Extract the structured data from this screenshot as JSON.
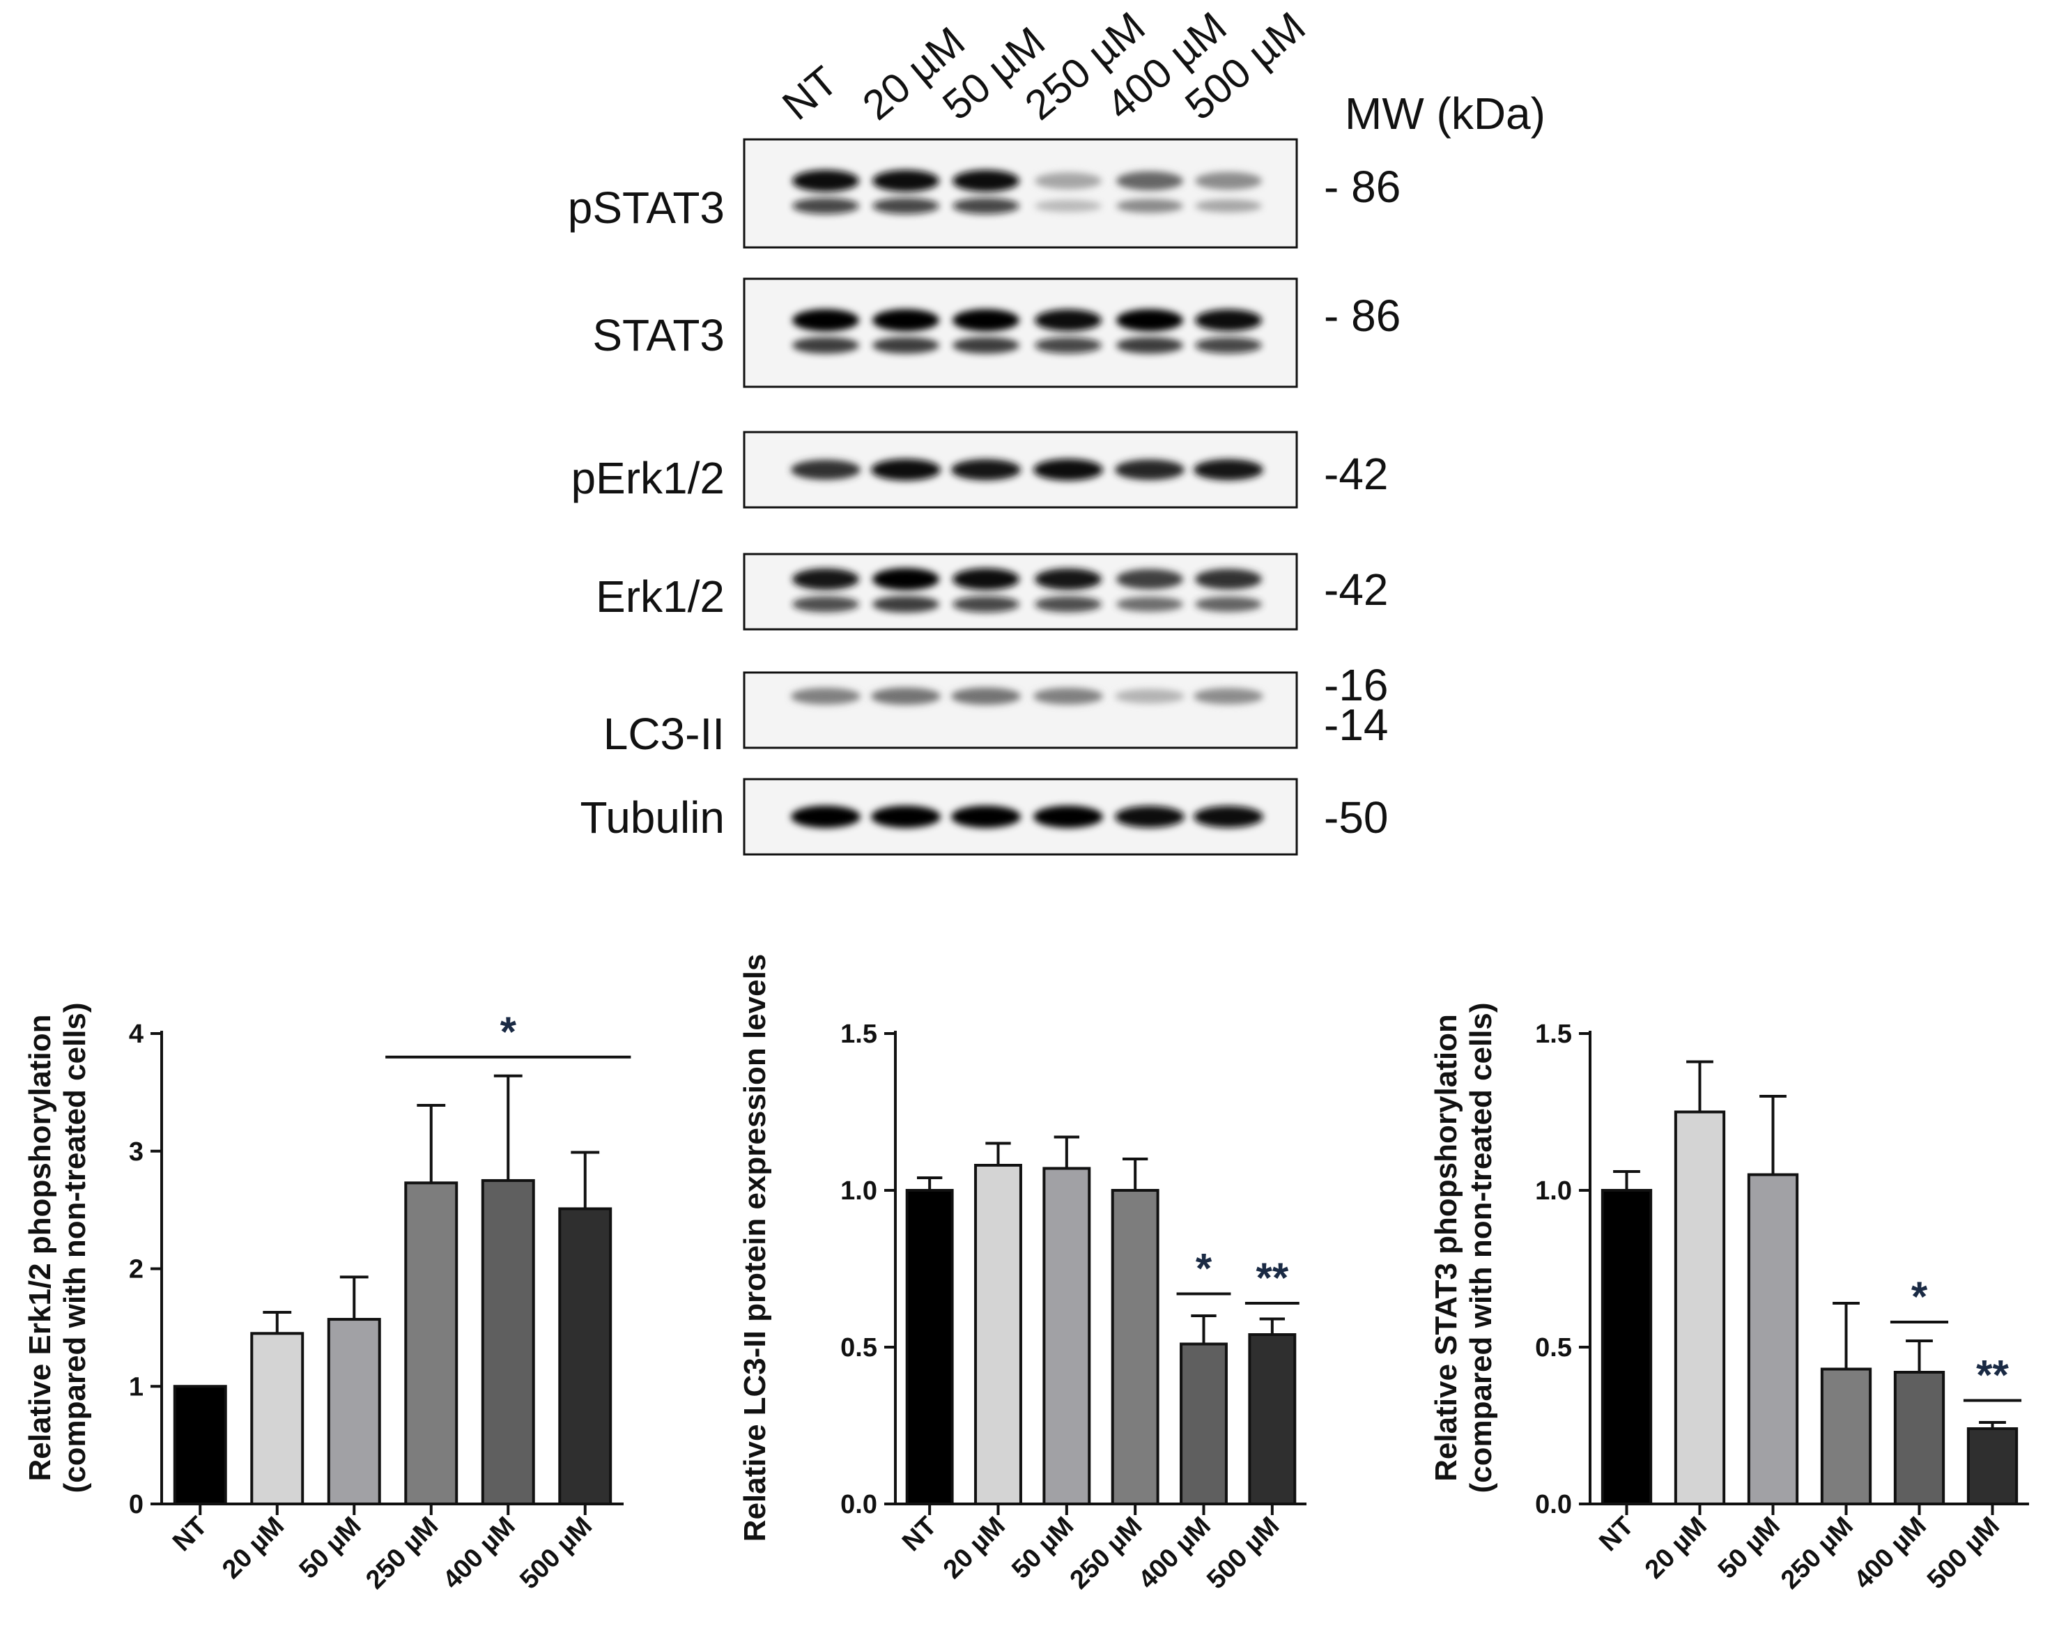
{
  "blot": {
    "lanes": [
      "NT",
      "20 µM",
      "50 µM",
      "250 µM",
      "400 µM",
      "500 µM"
    ],
    "mw_header": "MW (kDa)",
    "panels": [
      {
        "label": "pSTAT3",
        "mw": [
          "- 86"
        ],
        "intensity": [
          0.95,
          0.95,
          0.95,
          0.35,
          0.6,
          0.45
        ],
        "bands": 2
      },
      {
        "label": "STAT3",
        "mw": [
          "- 86"
        ],
        "intensity": [
          1,
          1,
          1,
          0.95,
          1,
          0.95
        ],
        "bands": 2
      },
      {
        "label": "pErk1/2",
        "mw": [
          "-42"
        ],
        "intensity": [
          0.8,
          0.95,
          0.9,
          0.95,
          0.85,
          0.9
        ],
        "bands": 1
      },
      {
        "label": "Erk1/2",
        "mw": [
          "-42"
        ],
        "intensity": [
          0.9,
          1,
          0.95,
          0.9,
          0.75,
          0.8
        ],
        "bands": 2
      },
      {
        "label": "LC3-II",
        "mw": [
          "-16",
          "-14"
        ],
        "intensity": [
          0.5,
          0.55,
          0.55,
          0.5,
          0.3,
          0.45
        ],
        "bands": 1
      },
      {
        "label": "Tubulin",
        "mw": [
          "-50"
        ],
        "intensity": [
          1,
          1,
          1,
          1,
          0.95,
          0.95
        ],
        "bands": 1
      }
    ]
  },
  "chart_data": [
    {
      "type": "bar",
      "categories": [
        "NT",
        "20 µM",
        "50 µM",
        "250 µM",
        "400 µM",
        "500 µM"
      ],
      "values": [
        1.0,
        1.45,
        1.57,
        2.73,
        2.75,
        2.51
      ],
      "errors": [
        0,
        0.18,
        0.36,
        0.66,
        0.89,
        0.48
      ],
      "ylabel": "Relative Erk1/2 phopshorylation",
      "ylabel2": "(compared with non-treated cells)",
      "ylim": [
        0,
        4
      ],
      "yticks": [
        "0",
        "1",
        "2",
        "3",
        "4"
      ],
      "tick_values": [
        0,
        1,
        2,
        3,
        4
      ],
      "colors": [
        "#000000",
        "#d4d4d4",
        "#a1a1a5",
        "#7d7d7d",
        "#5f5f5f",
        "#2f2f2f"
      ],
      "significance": [
        {
          "label": "*",
          "from": 3,
          "to": 5,
          "y": 3.8
        }
      ]
    },
    {
      "type": "bar",
      "categories": [
        "NT",
        "20 µM",
        "50 µM",
        "250 µM",
        "400 µM",
        "500 µM"
      ],
      "values": [
        1.0,
        1.08,
        1.07,
        1.0,
        0.51,
        0.54
      ],
      "errors": [
        0.04,
        0.07,
        0.1,
        0.1,
        0.09,
        0.05
      ],
      "ylabel": "Relative LC3-II protein expression levels",
      "ylabel2": "",
      "ylim": [
        0,
        1.5
      ],
      "yticks": [
        "0.0",
        "0.5",
        "1.0",
        "1.5"
      ],
      "tick_values": [
        0,
        0.5,
        1.0,
        1.5
      ],
      "colors": [
        "#000000",
        "#d4d4d4",
        "#a1a1a5",
        "#7d7d7d",
        "#5f5f5f",
        "#2f2f2f"
      ],
      "significance": [
        {
          "label": "*",
          "from": 4,
          "to": 4,
          "y": 0.67
        },
        {
          "label": "**",
          "from": 5,
          "to": 5,
          "y": 0.64
        }
      ]
    },
    {
      "type": "bar",
      "categories": [
        "NT",
        "20 µM",
        "50 µM",
        "250 µM",
        "400 µM",
        "500 µM"
      ],
      "values": [
        1.0,
        1.25,
        1.05,
        0.43,
        0.42,
        0.24
      ],
      "errors": [
        0.06,
        0.16,
        0.25,
        0.21,
        0.1,
        0.02
      ],
      "ylabel": "Relative STAT3 phopshorylation",
      "ylabel2": "(compared with non-treated cells)",
      "ylim": [
        0,
        1.5
      ],
      "yticks": [
        "0.0",
        "0.5",
        "1.0",
        "1.5"
      ],
      "tick_values": [
        0,
        0.5,
        1.0,
        1.5
      ],
      "colors": [
        "#000000",
        "#d4d4d4",
        "#a1a1a5",
        "#7d7d7d",
        "#5f5f5f",
        "#2f2f2f"
      ],
      "significance": [
        {
          "label": "*",
          "from": 4,
          "to": 4,
          "y": 0.58
        },
        {
          "label": "**",
          "from": 5,
          "to": 5,
          "y": 0.33
        }
      ]
    }
  ]
}
